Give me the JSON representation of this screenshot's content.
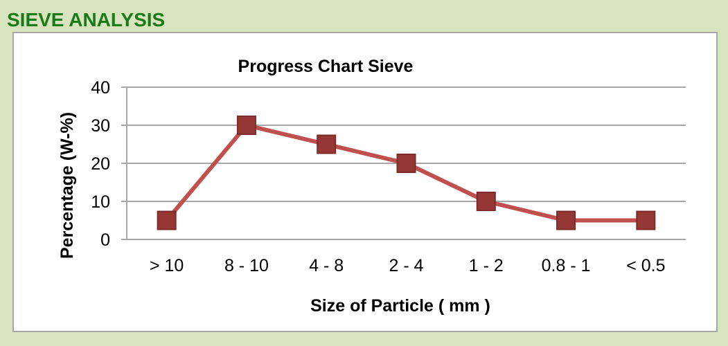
{
  "header": {
    "title": "SIEVE ANALYSIS"
  },
  "colors": {
    "background": "#d7e4bd",
    "header_text": "#1a7a1a",
    "line": "#c0504d",
    "marker": "#953735",
    "marker_edge": "#7b2c2a",
    "grid": "#a6a6a6"
  },
  "chart_data": {
    "type": "line",
    "title": "Progress Chart  Sieve",
    "xlabel": "Size of Particle ( mm )",
    "ylabel": "Percentage (W-%)",
    "categories": [
      "> 10",
      "8 - 10",
      "4 - 8",
      "2 - 4",
      "1 - 2",
      "0.8 - 1",
      "< 0.5"
    ],
    "values": [
      5,
      30,
      25,
      20,
      10,
      5,
      5
    ],
    "ylim": [
      0,
      40
    ],
    "yticks": [
      0,
      10,
      20,
      30,
      40
    ],
    "grid": true,
    "legend": "none",
    "marker": "square"
  }
}
